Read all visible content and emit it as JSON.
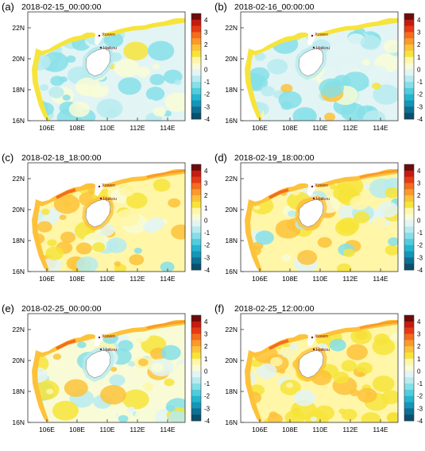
{
  "colorbar": {
    "levels": [
      "4",
      "3",
      "2",
      "1",
      "0",
      "-1",
      "-2",
      "-3",
      "-4"
    ],
    "colors": [
      "#6e0b0b",
      "#c51b10",
      "#e63a14",
      "#f46d1f",
      "#fb9a2b",
      "#fdc23a",
      "#f7e43a",
      "#fff6a8",
      "#f8fbd6",
      "#e3f4f5",
      "#b7ebf0",
      "#86dfe8",
      "#52ccdc",
      "#25b5cf",
      "#1595b7",
      "#0f6f92",
      "#0a4f6d"
    ]
  },
  "axes": {
    "x_ticks": [
      "106E",
      "108E",
      "110E",
      "112E",
      "114E"
    ],
    "y_ticks": [
      "22N",
      "20N",
      "18N",
      "16N"
    ]
  },
  "place_labels": {
    "city1": "Xuwen",
    "city2": "Haikou"
  },
  "chart_data": [
    {
      "type": "heatmap",
      "panel_label": "(a)",
      "title": "2018-02-15_00:00:00",
      "x_ticks": [
        "106E",
        "108E",
        "110E",
        "112E",
        "114E"
      ],
      "y_ticks": [
        "22N",
        "20N",
        "18N",
        "16N"
      ],
      "color_levels": [
        4,
        3,
        2,
        1,
        0,
        -1,
        -2,
        -3,
        -4
      ],
      "dominant": "cool"
    },
    {
      "type": "heatmap",
      "panel_label": "(b)",
      "title": "2018-02-16_00:00:00",
      "x_ticks": [
        "106E",
        "108E",
        "110E",
        "112E",
        "114E"
      ],
      "y_ticks": [
        "22N",
        "20N",
        "18N",
        "16N"
      ],
      "color_levels": [
        4,
        3,
        2,
        1,
        0,
        -1,
        -2,
        -3,
        -4
      ],
      "dominant": "cool"
    },
    {
      "type": "heatmap",
      "panel_label": "(c)",
      "title": "2018-02-18_18:00:00",
      "x_ticks": [
        "106E",
        "108E",
        "110E",
        "112E",
        "114E"
      ],
      "y_ticks": [
        "22N",
        "20N",
        "18N",
        "16N"
      ],
      "color_levels": [
        4,
        3,
        2,
        1,
        0,
        -1,
        -2,
        -3,
        -4
      ],
      "dominant": "warm"
    },
    {
      "type": "heatmap",
      "panel_label": "(d)",
      "title": "2018-02-19_18:00:00",
      "x_ticks": [
        "106E",
        "108E",
        "110E",
        "112E",
        "114E"
      ],
      "y_ticks": [
        "22N",
        "20N",
        "18N",
        "16N"
      ],
      "color_levels": [
        4,
        3,
        2,
        1,
        0,
        -1,
        -2,
        -3,
        -4
      ],
      "dominant": "warm"
    },
    {
      "type": "heatmap",
      "panel_label": "(e)",
      "title": "2018-02-25_00:00:00",
      "x_ticks": [
        "106E",
        "108E",
        "110E",
        "112E",
        "114E"
      ],
      "y_ticks": [
        "22N",
        "20N",
        "18N",
        "16N"
      ],
      "color_levels": [
        4,
        3,
        2,
        1,
        0,
        -1,
        -2,
        -3,
        -4
      ],
      "dominant": "mixed"
    },
    {
      "type": "heatmap",
      "panel_label": "(f)",
      "title": "2018-02-25_12:00:00",
      "x_ticks": [
        "106E",
        "108E",
        "110E",
        "112E",
        "114E"
      ],
      "y_ticks": [
        "22N",
        "20N",
        "18N",
        "16N"
      ],
      "color_levels": [
        4,
        3,
        2,
        1,
        0,
        -1,
        -2,
        -3,
        -4
      ],
      "dominant": "warm"
    }
  ]
}
